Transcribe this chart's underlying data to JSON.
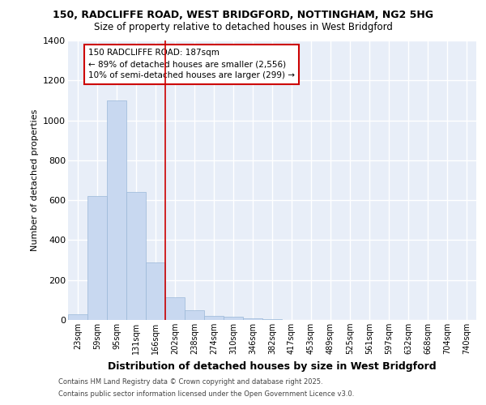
{
  "title_line1": "150, RADCLIFFE ROAD, WEST BRIDGFORD, NOTTINGHAM, NG2 5HG",
  "title_line2": "Size of property relative to detached houses in West Bridgford",
  "xlabel": "Distribution of detached houses by size in West Bridgford",
  "ylabel": "Number of detached properties",
  "categories": [
    "23sqm",
    "59sqm",
    "95sqm",
    "131sqm",
    "166sqm",
    "202sqm",
    "238sqm",
    "274sqm",
    "310sqm",
    "346sqm",
    "382sqm",
    "417sqm",
    "453sqm",
    "489sqm",
    "525sqm",
    "561sqm",
    "597sqm",
    "632sqm",
    "668sqm",
    "704sqm",
    "740sqm"
  ],
  "values": [
    30,
    620,
    1100,
    640,
    290,
    115,
    50,
    20,
    15,
    10,
    5,
    0,
    0,
    0,
    0,
    0,
    0,
    0,
    0,
    0,
    0
  ],
  "bar_color": "#c8d8f0",
  "bar_edge_color": "#9ab8d8",
  "ylim": [
    0,
    1400
  ],
  "yticks": [
    0,
    200,
    400,
    600,
    800,
    1000,
    1200,
    1400
  ],
  "property_line_x": 4.5,
  "annotation_title": "150 RADCLIFFE ROAD: 187sqm",
  "annotation_line1": "← 89% of detached houses are smaller (2,556)",
  "annotation_line2": "10% of semi-detached houses are larger (299) →",
  "footer_line1": "Contains HM Land Registry data © Crown copyright and database right 2025.",
  "footer_line2": "Contains public sector information licensed under the Open Government Licence v3.0.",
  "bg_color": "#e8eef8",
  "grid_color": "#ffffff",
  "annotation_box_color": "#cc0000",
  "bar_width": 1.0
}
